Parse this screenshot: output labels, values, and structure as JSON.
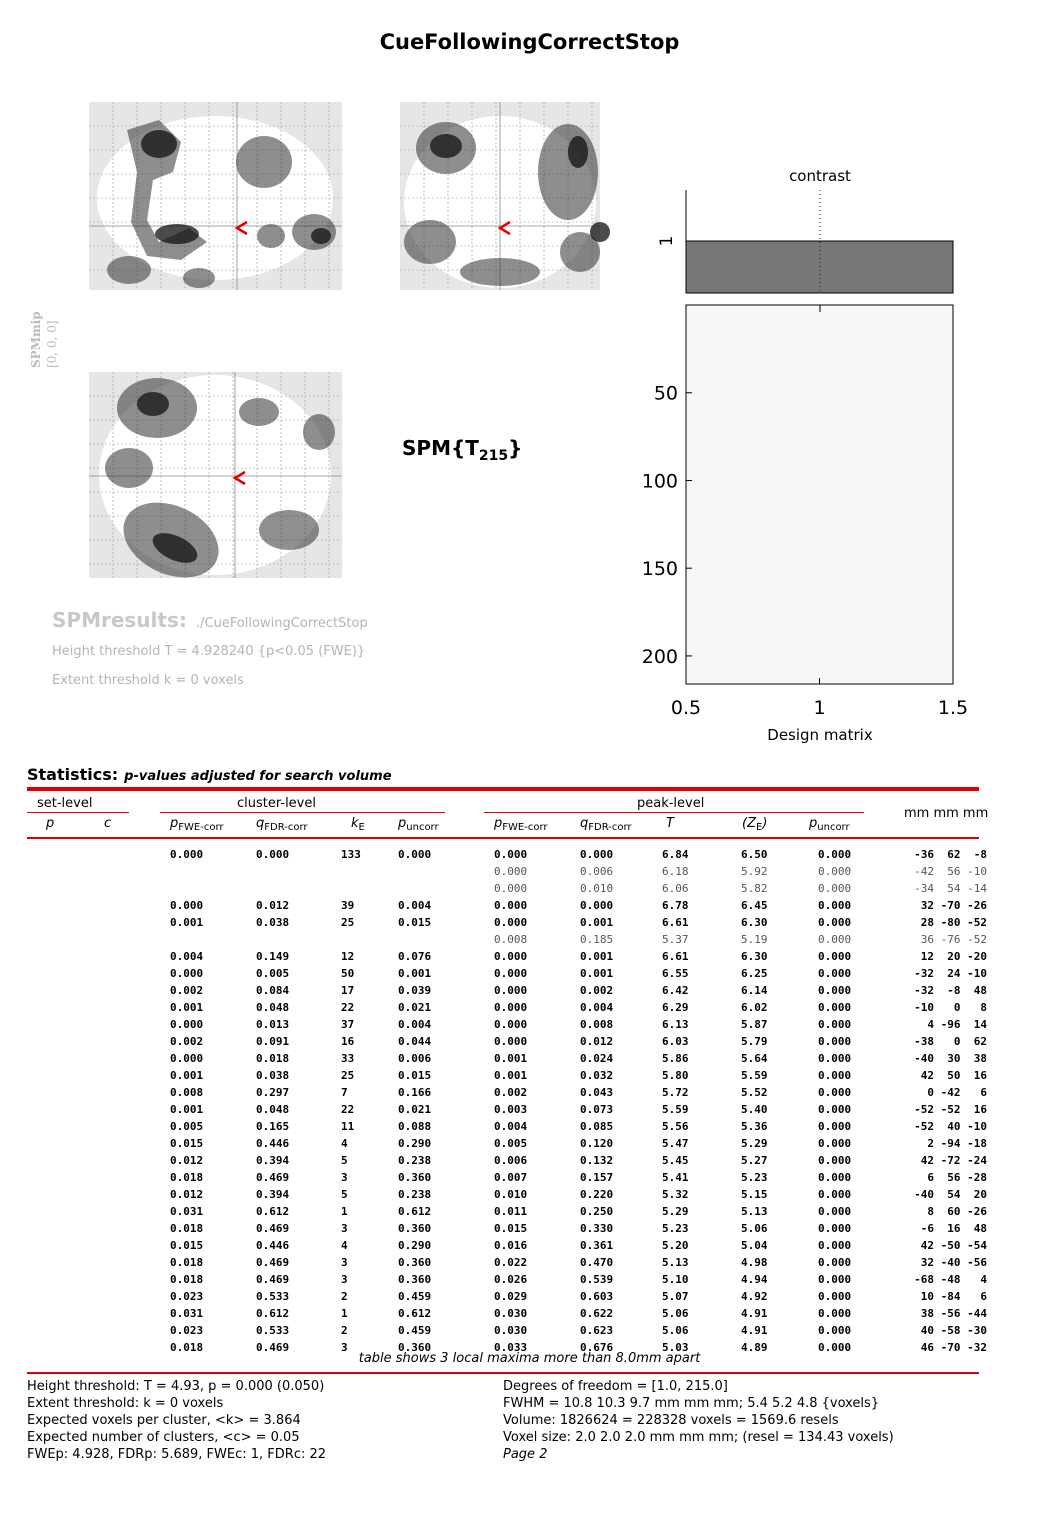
{
  "title": "CueFollowingCorrectStop",
  "mip": {
    "label": "SPMmip",
    "coords": "[0, 0, 0]"
  },
  "spm_t": {
    "main": "SPM{T",
    "sub": "215",
    "close": "}"
  },
  "results": {
    "label": "SPMresults:",
    "path": "./CueFollowingCorrectStop",
    "height": "Height threshold T = 4.928240  {p<0.05 (FWE)}",
    "extent": "Extent threshold k = 0 voxels"
  },
  "chart_data": {
    "type": "bar",
    "title": "contrast",
    "xlabel": "Design matrix",
    "x_ticks": [
      "0.5",
      "1",
      "1.5"
    ],
    "y_ticks": [
      "50",
      "100",
      "150",
      "200"
    ],
    "contrast_tick": "1",
    "contrast_values": [
      1
    ],
    "design_rows": 216,
    "xlim": [
      0.5,
      1.5
    ],
    "ylim": [
      0,
      216
    ]
  },
  "stats": {
    "heading": "Statistics:",
    "subheading": "p-values adjusted for search volume",
    "groups": {
      "set": "set-level",
      "cluster": "cluster-level",
      "peak": "peak-level",
      "mm": "mm mm mm"
    },
    "columns": {
      "set_p": "p",
      "set_c": "c",
      "c_fwe": "p",
      "c_fwe_sub": "FWE-corr",
      "c_fdr": "q",
      "c_fdr_sub": "FDR-corr",
      "c_k": "k",
      "c_k_sub": "E",
      "c_unc": "p",
      "c_unc_sub": "uncorr",
      "p_fwe": "p",
      "p_fwe_sub": "FWE-corr",
      "p_fdr": "q",
      "p_fdr_sub": "FDR-corr",
      "p_t": "T",
      "p_z": "(Z",
      "p_z_sub": "E",
      "p_z_close": ")",
      "p_unc": "p",
      "p_unc_sub": "uncorr"
    },
    "rows": [
      {
        "c": [
          "0.000",
          "0.000",
          "133",
          "0.000"
        ],
        "p": [
          "0.000",
          "0.000",
          "6.84",
          "6.50",
          "0.000"
        ],
        "xyz": "-36  62  -8",
        "light": false
      },
      {
        "c": [
          "",
          "",
          "",
          ""
        ],
        "p": [
          "0.000",
          "0.006",
          "6.18",
          "5.92",
          "0.000"
        ],
        "xyz": "-42  56 -10",
        "light": true
      },
      {
        "c": [
          "",
          "",
          "",
          ""
        ],
        "p": [
          "0.000",
          "0.010",
          "6.06",
          "5.82",
          "0.000"
        ],
        "xyz": "-34  54 -14",
        "light": true
      },
      {
        "c": [
          "0.000",
          "0.012",
          "39",
          "0.004"
        ],
        "p": [
          "0.000",
          "0.000",
          "6.78",
          "6.45",
          "0.000"
        ],
        "xyz": "32 -70 -26",
        "light": false
      },
      {
        "c": [
          "0.001",
          "0.038",
          "25",
          "0.015"
        ],
        "p": [
          "0.000",
          "0.001",
          "6.61",
          "6.30",
          "0.000"
        ],
        "xyz": "28 -80 -52",
        "light": false
      },
      {
        "c": [
          "",
          "",
          "",
          ""
        ],
        "p": [
          "0.008",
          "0.185",
          "5.37",
          "5.19",
          "0.000"
        ],
        "xyz": "36 -76 -52",
        "light": true
      },
      {
        "c": [
          "0.004",
          "0.149",
          "12",
          "0.076"
        ],
        "p": [
          "0.000",
          "0.001",
          "6.61",
          "6.30",
          "0.000"
        ],
        "xyz": "12  20 -20",
        "light": false
      },
      {
        "c": [
          "0.000",
          "0.005",
          "50",
          "0.001"
        ],
        "p": [
          "0.000",
          "0.001",
          "6.55",
          "6.25",
          "0.000"
        ],
        "xyz": "-32  24 -10",
        "light": false
      },
      {
        "c": [
          "0.002",
          "0.084",
          "17",
          "0.039"
        ],
        "p": [
          "0.000",
          "0.002",
          "6.42",
          "6.14",
          "0.000"
        ],
        "xyz": "-32  -8  48",
        "light": false
      },
      {
        "c": [
          "0.001",
          "0.048",
          "22",
          "0.021"
        ],
        "p": [
          "0.000",
          "0.004",
          "6.29",
          "6.02",
          "0.000"
        ],
        "xyz": "-10   0   8",
        "light": false
      },
      {
        "c": [
          "0.000",
          "0.013",
          "37",
          "0.004"
        ],
        "p": [
          "0.000",
          "0.008",
          "6.13",
          "5.87",
          "0.000"
        ],
        "xyz": "4 -96  14",
        "light": false
      },
      {
        "c": [
          "0.002",
          "0.091",
          "16",
          "0.044"
        ],
        "p": [
          "0.000",
          "0.012",
          "6.03",
          "5.79",
          "0.000"
        ],
        "xyz": "-38   0  62",
        "light": false
      },
      {
        "c": [
          "0.000",
          "0.018",
          "33",
          "0.006"
        ],
        "p": [
          "0.001",
          "0.024",
          "5.86",
          "5.64",
          "0.000"
        ],
        "xyz": "-40  30  38",
        "light": false
      },
      {
        "c": [
          "0.001",
          "0.038",
          "25",
          "0.015"
        ],
        "p": [
          "0.001",
          "0.032",
          "5.80",
          "5.59",
          "0.000"
        ],
        "xyz": "42  50  16",
        "light": false
      },
      {
        "c": [
          "0.008",
          "0.297",
          "7",
          "0.166"
        ],
        "p": [
          "0.002",
          "0.043",
          "5.72",
          "5.52",
          "0.000"
        ],
        "xyz": "0 -42   6",
        "light": false
      },
      {
        "c": [
          "0.001",
          "0.048",
          "22",
          "0.021"
        ],
        "p": [
          "0.003",
          "0.073",
          "5.59",
          "5.40",
          "0.000"
        ],
        "xyz": "-52 -52  16",
        "light": false
      },
      {
        "c": [
          "0.005",
          "0.165",
          "11",
          "0.088"
        ],
        "p": [
          "0.004",
          "0.085",
          "5.56",
          "5.36",
          "0.000"
        ],
        "xyz": "-52  40 -10",
        "light": false
      },
      {
        "c": [
          "0.015",
          "0.446",
          "4",
          "0.290"
        ],
        "p": [
          "0.005",
          "0.120",
          "5.47",
          "5.29",
          "0.000"
        ],
        "xyz": "2 -94 -18",
        "light": false
      },
      {
        "c": [
          "0.012",
          "0.394",
          "5",
          "0.238"
        ],
        "p": [
          "0.006",
          "0.132",
          "5.45",
          "5.27",
          "0.000"
        ],
        "xyz": "42 -72 -24",
        "light": false
      },
      {
        "c": [
          "0.018",
          "0.469",
          "3",
          "0.360"
        ],
        "p": [
          "0.007",
          "0.157",
          "5.41",
          "5.23",
          "0.000"
        ],
        "xyz": "6  56 -28",
        "light": false
      },
      {
        "c": [
          "0.012",
          "0.394",
          "5",
          "0.238"
        ],
        "p": [
          "0.010",
          "0.220",
          "5.32",
          "5.15",
          "0.000"
        ],
        "xyz": "-40  54  20",
        "light": false
      },
      {
        "c": [
          "0.031",
          "0.612",
          "1",
          "0.612"
        ],
        "p": [
          "0.011",
          "0.250",
          "5.29",
          "5.13",
          "0.000"
        ],
        "xyz": "8  60 -26",
        "light": false
      },
      {
        "c": [
          "0.018",
          "0.469",
          "3",
          "0.360"
        ],
        "p": [
          "0.015",
          "0.330",
          "5.23",
          "5.06",
          "0.000"
        ],
        "xyz": "-6  16  48",
        "light": false
      },
      {
        "c": [
          "0.015",
          "0.446",
          "4",
          "0.290"
        ],
        "p": [
          "0.016",
          "0.361",
          "5.20",
          "5.04",
          "0.000"
        ],
        "xyz": "42 -50 -54",
        "light": false
      },
      {
        "c": [
          "0.018",
          "0.469",
          "3",
          "0.360"
        ],
        "p": [
          "0.022",
          "0.470",
          "5.13",
          "4.98",
          "0.000"
        ],
        "xyz": "32 -40 -56",
        "light": false
      },
      {
        "c": [
          "0.018",
          "0.469",
          "3",
          "0.360"
        ],
        "p": [
          "0.026",
          "0.539",
          "5.10",
          "4.94",
          "0.000"
        ],
        "xyz": "-68 -48   4",
        "light": false
      },
      {
        "c": [
          "0.023",
          "0.533",
          "2",
          "0.459"
        ],
        "p": [
          "0.029",
          "0.603",
          "5.07",
          "4.92",
          "0.000"
        ],
        "xyz": "10 -84   6",
        "light": false
      },
      {
        "c": [
          "0.031",
          "0.612",
          "1",
          "0.612"
        ],
        "p": [
          "0.030",
          "0.622",
          "5.06",
          "4.91",
          "0.000"
        ],
        "xyz": "38 -56 -44",
        "light": false
      },
      {
        "c": [
          "0.023",
          "0.533",
          "2",
          "0.459"
        ],
        "p": [
          "0.030",
          "0.623",
          "5.06",
          "4.91",
          "0.000"
        ],
        "xyz": "40 -58 -30",
        "light": false
      },
      {
        "c": [
          "0.018",
          "0.469",
          "3",
          "0.360"
        ],
        "p": [
          "0.033",
          "0.676",
          "5.03",
          "4.89",
          "0.000"
        ],
        "xyz": "46 -70 -32",
        "light": false
      }
    ],
    "footnote": "table shows 3 local maxima more than 8.0mm apart"
  },
  "footer": {
    "left": [
      "Height threshold: T = 4.93, p = 0.000 (0.050)",
      "Extent threshold: k = 0 voxels",
      "Expected voxels per cluster, <k> = 3.864",
      "Expected number of clusters, <c> = 0.05",
      "FWEp: 4.928, FDRp: 5.689, FWEc: 1, FDRc: 22"
    ],
    "right": [
      "Degrees of freedom = [1.0, 215.0]",
      "FWHM = 10.8 10.3 9.7 mm mm mm; 5.4 5.2 4.8 {voxels}",
      "Volume: 1826624 = 228328 voxels = 1569.6 resels",
      "Voxel size: 2.0 2.0 2.0 mm mm mm; (resel = 134.43 voxels)",
      "Page 2"
    ]
  }
}
